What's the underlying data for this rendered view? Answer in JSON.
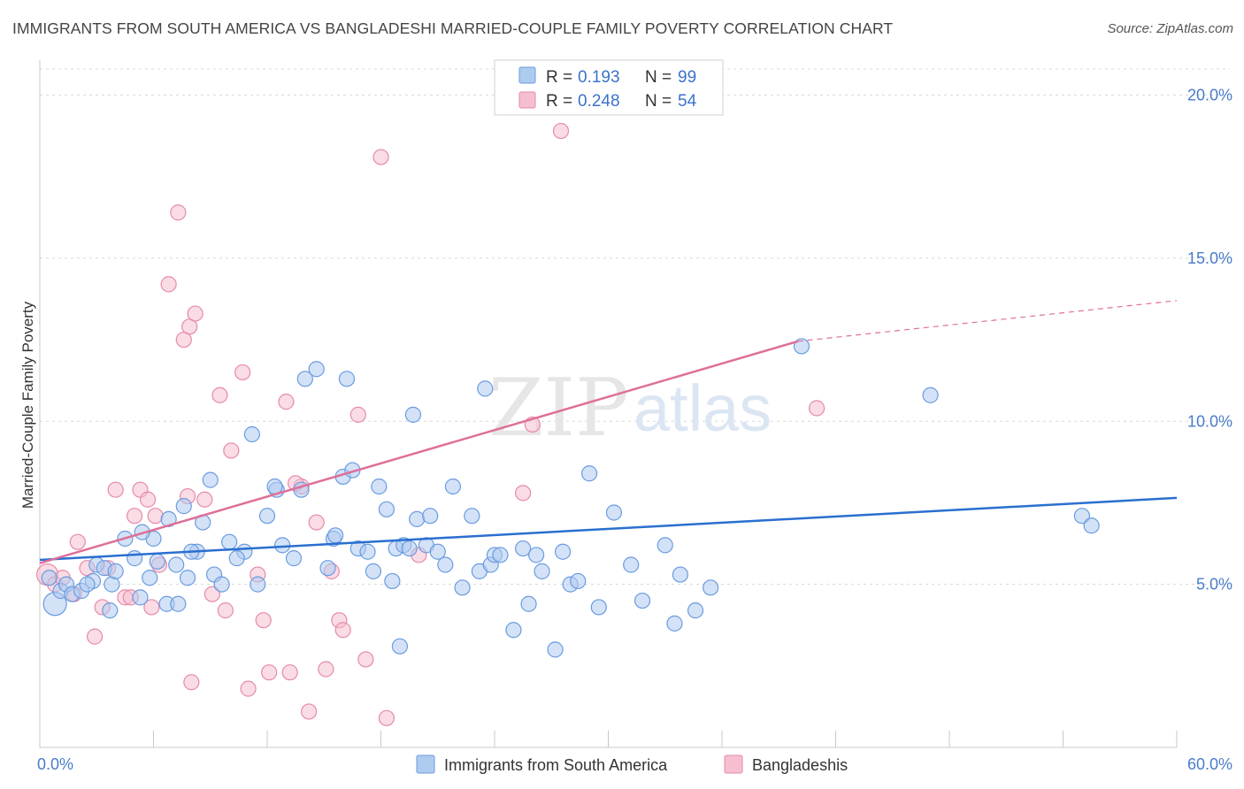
{
  "title": "IMMIGRANTS FROM SOUTH AMERICA VS BANGLADESHI MARRIED-COUPLE FAMILY POVERTY CORRELATION CHART",
  "source": "Source: ZipAtlas.com",
  "watermark": {
    "zip": "ZIP",
    "atlas": "atlas"
  },
  "legend_top": [
    {
      "r_label": "R =",
      "r_value": "0.193",
      "n_label": "N =",
      "n_value": "99"
    },
    {
      "r_label": "R =",
      "r_value": "0.248",
      "n_label": "N =",
      "n_value": "54"
    }
  ],
  "colors": {
    "blue_fill": "#aecbf0",
    "blue_stroke": "#6a9be0",
    "blue_line": "#2a6fd0",
    "pink_fill": "#f6bfd0",
    "pink_stroke": "#e68aa8",
    "pink_line": "#df6f98",
    "grid": "#d8d8d8",
    "tick_text": "#4a7cc9"
  },
  "chart_data": {
    "type": "scatter",
    "title": "IMMIGRANTS FROM SOUTH AMERICA VS BANGLADESHI MARRIED-COUPLE FAMILY POVERTY CORRELATION CHART",
    "xlabel": "",
    "ylabel": "Married-Couple Family Poverty",
    "xlim": [
      0,
      60
    ],
    "ylim": [
      0,
      20.8
    ],
    "x_tick_labels": [
      "0.0%",
      "60.0%"
    ],
    "y_ticks": [
      5,
      10,
      15,
      20
    ],
    "y_tick_labels": [
      "5.0%",
      "10.0%",
      "15.0%",
      "20.0%"
    ],
    "grid": true,
    "legend_position": "bottom-center",
    "series": [
      {
        "name": "Immigrants from South America",
        "color": "#aecbf0",
        "trend": {
          "x": [
            0,
            60
          ],
          "y": [
            5.75,
            7.65
          ]
        },
        "points": [
          [
            0.5,
            5.2
          ],
          [
            0.8,
            4.4
          ],
          [
            1.1,
            4.8
          ],
          [
            1.4,
            5.0
          ],
          [
            1.7,
            4.7
          ],
          [
            2.2,
            4.8
          ],
          [
            2.8,
            5.1
          ],
          [
            3.0,
            5.6
          ],
          [
            3.4,
            5.5
          ],
          [
            3.8,
            5.0
          ],
          [
            3.7,
            4.2
          ],
          [
            4.0,
            5.4
          ],
          [
            5.0,
            5.8
          ],
          [
            5.3,
            4.6
          ],
          [
            6.0,
            6.4
          ],
          [
            6.8,
            7.0
          ],
          [
            7.2,
            5.6
          ],
          [
            7.8,
            5.2
          ],
          [
            8.3,
            6.0
          ],
          [
            8.6,
            6.9
          ],
          [
            9.2,
            5.3
          ],
          [
            9.6,
            5.0
          ],
          [
            4.5,
            6.4
          ],
          [
            5.4,
            6.6
          ],
          [
            5.8,
            5.2
          ],
          [
            6.7,
            4.4
          ],
          [
            7.3,
            4.4
          ],
          [
            7.6,
            7.4
          ],
          [
            9.0,
            8.2
          ],
          [
            10.0,
            6.3
          ],
          [
            10.8,
            6.0
          ],
          [
            11.2,
            9.6
          ],
          [
            11.5,
            5.0
          ],
          [
            12.0,
            7.1
          ],
          [
            12.5,
            7.9
          ],
          [
            12.8,
            6.2
          ],
          [
            13.4,
            5.8
          ],
          [
            13.8,
            7.9
          ],
          [
            14.0,
            11.3
          ],
          [
            14.6,
            11.6
          ],
          [
            15.2,
            5.5
          ],
          [
            15.5,
            6.4
          ],
          [
            15.6,
            6.5
          ],
          [
            16.0,
            8.3
          ],
          [
            16.2,
            11.3
          ],
          [
            16.5,
            8.5
          ],
          [
            16.8,
            6.1
          ],
          [
            17.3,
            6.0
          ],
          [
            17.6,
            5.4
          ],
          [
            17.9,
            8.0
          ],
          [
            18.3,
            7.3
          ],
          [
            18.6,
            5.1
          ],
          [
            18.8,
            6.1
          ],
          [
            19.2,
            6.2
          ],
          [
            19.5,
            6.1
          ],
          [
            19.7,
            10.2
          ],
          [
            19.9,
            7.0
          ],
          [
            20.4,
            6.2
          ],
          [
            20.6,
            7.1
          ],
          [
            21.0,
            6.0
          ],
          [
            21.4,
            5.6
          ],
          [
            21.8,
            8.0
          ],
          [
            22.3,
            4.9
          ],
          [
            22.8,
            7.1
          ],
          [
            23.2,
            5.4
          ],
          [
            23.5,
            11.0
          ],
          [
            23.8,
            5.6
          ],
          [
            24.0,
            5.9
          ],
          [
            24.3,
            5.9
          ],
          [
            25.0,
            3.6
          ],
          [
            25.5,
            6.1
          ],
          [
            25.8,
            4.4
          ],
          [
            26.2,
            5.9
          ],
          [
            26.5,
            5.4
          ],
          [
            27.2,
            3.0
          ],
          [
            27.6,
            6.0
          ],
          [
            28.0,
            5.0
          ],
          [
            28.4,
            5.1
          ],
          [
            29.0,
            8.4
          ],
          [
            29.5,
            4.3
          ],
          [
            30.3,
            7.2
          ],
          [
            31.2,
            5.6
          ],
          [
            31.8,
            4.5
          ],
          [
            33.0,
            6.2
          ],
          [
            33.5,
            3.8
          ],
          [
            33.8,
            5.3
          ],
          [
            34.6,
            4.2
          ],
          [
            35.4,
            4.9
          ],
          [
            12.4,
            8.0
          ],
          [
            6.2,
            5.7
          ],
          [
            8.0,
            6.0
          ],
          [
            10.4,
            5.8
          ],
          [
            19.0,
            3.1
          ],
          [
            2.5,
            5.0
          ],
          [
            40.2,
            12.3
          ],
          [
            47.0,
            10.8
          ],
          [
            55.0,
            7.1
          ],
          [
            55.5,
            6.8
          ]
        ]
      },
      {
        "name": "Bangladeshis",
        "color": "#f6bfd0",
        "trend": {
          "x": [
            0,
            40
          ],
          "y": [
            5.65,
            12.45
          ]
        },
        "trend_dashed": {
          "x": [
            40,
            60
          ],
          "y": [
            12.45,
            13.7
          ]
        },
        "points": [
          [
            0.4,
            5.3
          ],
          [
            0.8,
            5.0
          ],
          [
            1.2,
            5.2
          ],
          [
            1.8,
            4.7
          ],
          [
            2.0,
            6.3
          ],
          [
            2.5,
            5.5
          ],
          [
            2.9,
            3.4
          ],
          [
            3.3,
            4.3
          ],
          [
            3.6,
            5.5
          ],
          [
            4.0,
            7.9
          ],
          [
            4.5,
            4.6
          ],
          [
            4.8,
            4.6
          ],
          [
            5.0,
            7.1
          ],
          [
            5.3,
            7.9
          ],
          [
            5.7,
            7.6
          ],
          [
            5.9,
            4.3
          ],
          [
            6.1,
            7.1
          ],
          [
            6.3,
            5.6
          ],
          [
            6.8,
            14.2
          ],
          [
            7.3,
            16.4
          ],
          [
            7.6,
            12.5
          ],
          [
            7.9,
            12.9
          ],
          [
            8.2,
            13.3
          ],
          [
            8.0,
            2.0
          ],
          [
            8.7,
            7.6
          ],
          [
            9.1,
            4.7
          ],
          [
            9.5,
            10.8
          ],
          [
            9.8,
            4.2
          ],
          [
            10.1,
            9.1
          ],
          [
            10.7,
            11.5
          ],
          [
            11.0,
            1.8
          ],
          [
            11.5,
            5.3
          ],
          [
            11.8,
            3.9
          ],
          [
            12.1,
            2.3
          ],
          [
            13.0,
            10.6
          ],
          [
            13.2,
            2.3
          ],
          [
            13.8,
            8.0
          ],
          [
            14.2,
            1.1
          ],
          [
            14.6,
            6.9
          ],
          [
            15.1,
            2.4
          ],
          [
            15.4,
            5.4
          ],
          [
            15.8,
            3.9
          ],
          [
            16.0,
            3.6
          ],
          [
            16.8,
            10.2
          ],
          [
            17.2,
            2.7
          ],
          [
            18.0,
            18.1
          ],
          [
            18.3,
            0.9
          ],
          [
            20.0,
            5.9
          ],
          [
            25.5,
            7.8
          ],
          [
            26.0,
            9.9
          ],
          [
            27.5,
            18.9
          ],
          [
            41.0,
            10.4
          ],
          [
            7.8,
            7.7
          ],
          [
            13.5,
            8.1
          ]
        ]
      }
    ]
  },
  "bottom_legend": [
    {
      "label": "Immigrants from South America"
    },
    {
      "label": "Bangladeshis"
    }
  ]
}
